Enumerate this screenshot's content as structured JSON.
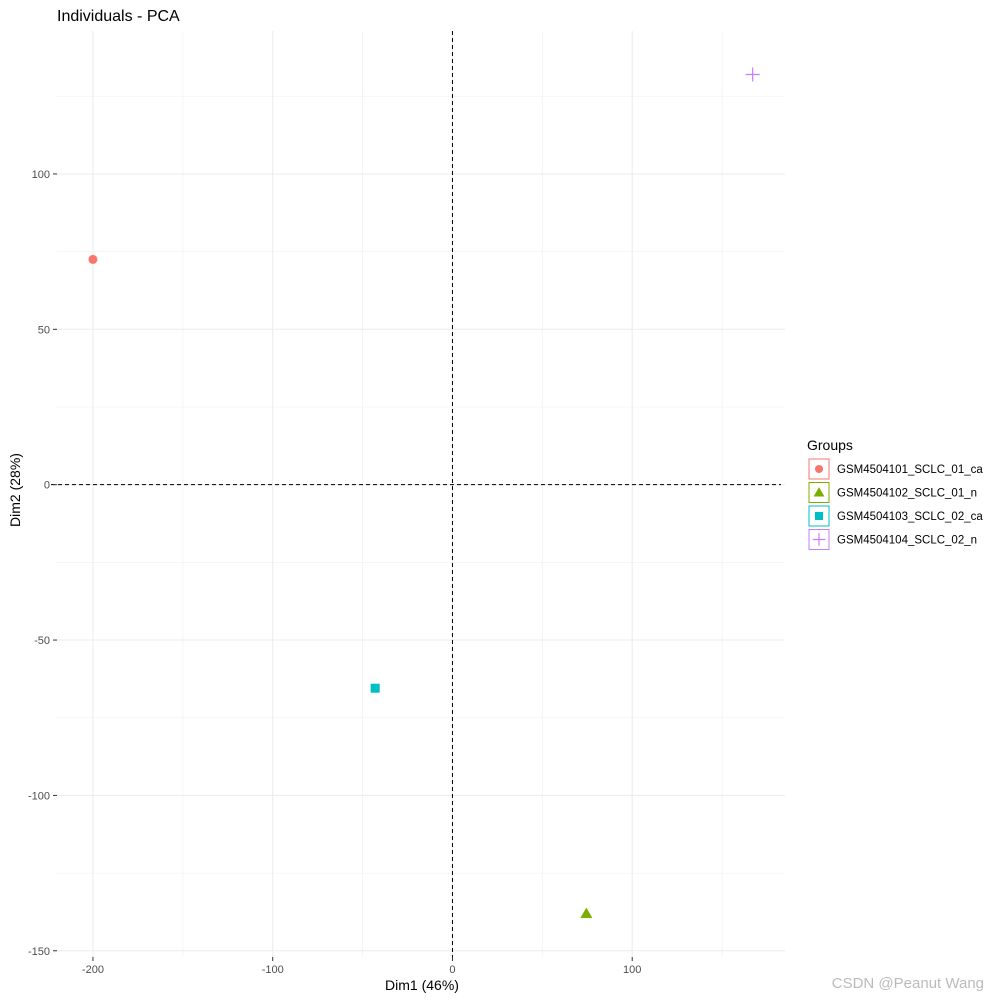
{
  "chart_data": {
    "type": "scatter",
    "title": "Individuals - PCA",
    "xlabel": "Dim1 (46%)",
    "ylabel": "Dim2 (28%)",
    "xlim": [
      -220,
      185
    ],
    "ylim": [
      -152,
      146
    ],
    "x_ticks": [
      -200,
      -100,
      0,
      100
    ],
    "y_ticks": [
      -150,
      -100,
      -50,
      0,
      50,
      100
    ],
    "grid": true,
    "reference_lines": {
      "x": 0,
      "y": 0,
      "style": "dashed"
    },
    "legend_title": "Groups",
    "legend_position": "right",
    "series": [
      {
        "name": "GSM4504101_SCLC_01_ca",
        "shape": "circle",
        "color": "#F8766D",
        "x": -200,
        "y": 72.5
      },
      {
        "name": "GSM4504102_SCLC_01_n",
        "shape": "triangle",
        "color": "#7CAE00",
        "x": 74.5,
        "y": -138
      },
      {
        "name": "GSM4504103_SCLC_02_ca",
        "shape": "square",
        "color": "#00BFC4",
        "x": -43,
        "y": -65.5
      },
      {
        "name": "GSM4504104_SCLC_02_n",
        "shape": "plus",
        "color": "#C77CFF",
        "x": 167,
        "y": 132
      }
    ]
  },
  "watermark": "CSDN @Peanut Wang"
}
